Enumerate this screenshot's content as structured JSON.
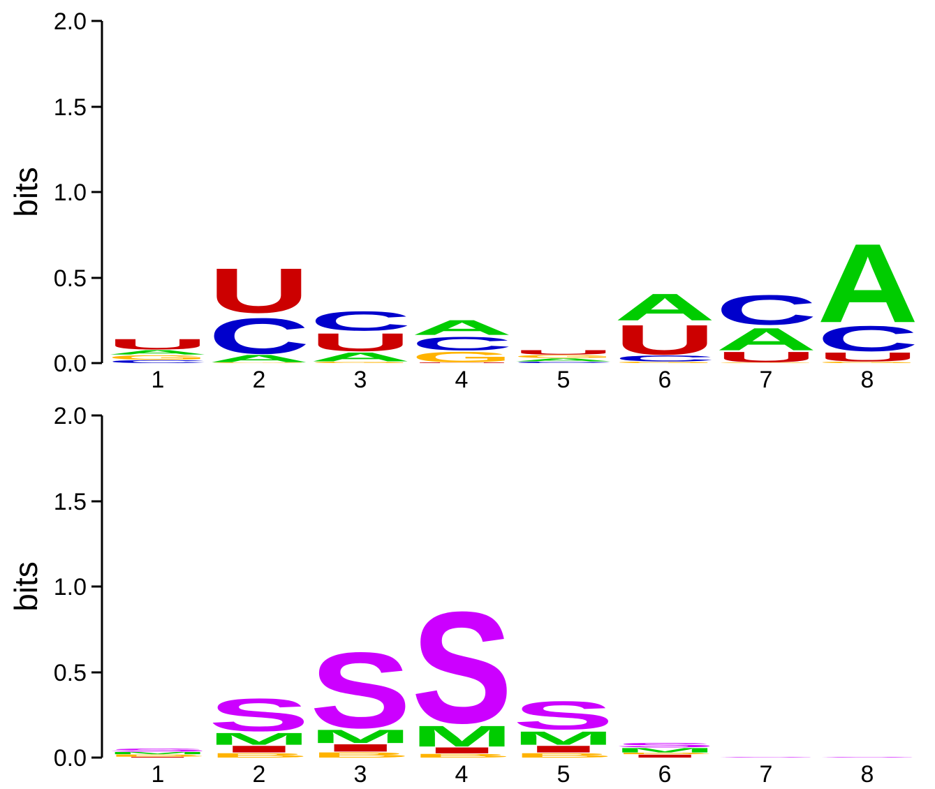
{
  "colors": {
    "A": "#00cc00",
    "C": "#0000cc",
    "G": "#ffb300",
    "U": "#cc0000",
    "S": "#cc00ff",
    "M": "#00cc00",
    "I": "#cc0000",
    "B": "#ffb300",
    "E": "#0000cc",
    "H": "#cc00ff"
  },
  "chart_data": [
    {
      "type": "sequence-logo",
      "title": "",
      "ylabel": "bits",
      "ylim": [
        0,
        2
      ],
      "yticks": [
        "0.0",
        "0.5",
        "1.0",
        "1.5",
        "2.0"
      ],
      "positions": [
        "1",
        "2",
        "3",
        "4",
        "5",
        "6",
        "7",
        "8"
      ],
      "stacks": [
        [
          {
            "letter": "C",
            "bits": 0.02
          },
          {
            "letter": "G",
            "bits": 0.03
          },
          {
            "letter": "A",
            "bits": 0.03
          },
          {
            "letter": "U",
            "bits": 0.07
          }
        ],
        [
          {
            "letter": "G",
            "bits": 0.005
          },
          {
            "letter": "A",
            "bits": 0.05
          },
          {
            "letter": "C",
            "bits": 0.24
          },
          {
            "letter": "U",
            "bits": 0.3
          }
        ],
        [
          {
            "letter": "G",
            "bits": 0.01
          },
          {
            "letter": "A",
            "bits": 0.06
          },
          {
            "letter": "U",
            "bits": 0.12
          },
          {
            "letter": "C",
            "bits": 0.13
          }
        ],
        [
          {
            "letter": "U",
            "bits": 0.005
          },
          {
            "letter": "G",
            "bits": 0.07
          },
          {
            "letter": "C",
            "bits": 0.09
          },
          {
            "letter": "A",
            "bits": 0.1
          }
        ],
        [
          {
            "letter": "C",
            "bits": 0.01
          },
          {
            "letter": "A",
            "bits": 0.02
          },
          {
            "letter": "G",
            "bits": 0.02
          },
          {
            "letter": "U",
            "bits": 0.03
          }
        ],
        [
          {
            "letter": "G",
            "bits": 0.01
          },
          {
            "letter": "C",
            "bits": 0.04
          },
          {
            "letter": "U",
            "bits": 0.2
          },
          {
            "letter": "A",
            "bits": 0.18
          }
        ],
        [
          {
            "letter": "G",
            "bits": 0.005
          },
          {
            "letter": "U",
            "bits": 0.07
          },
          {
            "letter": "A",
            "bits": 0.15
          },
          {
            "letter": "C",
            "bits": 0.2
          }
        ],
        [
          {
            "letter": "G",
            "bits": 0.01
          },
          {
            "letter": "U",
            "bits": 0.06
          },
          {
            "letter": "C",
            "bits": 0.17
          },
          {
            "letter": "A",
            "bits": 0.53
          }
        ]
      ]
    },
    {
      "type": "sequence-logo",
      "title": "",
      "ylabel": "bits",
      "ylim": [
        0,
        2
      ],
      "yticks": [
        "0.0",
        "0.5",
        "1.0",
        "1.5",
        "2.0"
      ],
      "positions": [
        "1",
        "2",
        "3",
        "4",
        "5",
        "6",
        "7",
        "8"
      ],
      "stacks": [
        [
          {
            "letter": "I",
            "bits": 0.005
          },
          {
            "letter": "B",
            "bits": 0.015
          },
          {
            "letter": "M",
            "bits": 0.015
          },
          {
            "letter": "S",
            "bits": 0.02
          }
        ],
        [
          {
            "letter": "B",
            "bits": 0.03
          },
          {
            "letter": "I",
            "bits": 0.045
          },
          {
            "letter": "M",
            "bits": 0.08
          },
          {
            "letter": "S",
            "bits": 0.22
          }
        ],
        [
          {
            "letter": "B",
            "bits": 0.035
          },
          {
            "letter": "I",
            "bits": 0.05
          },
          {
            "letter": "M",
            "bits": 0.09
          },
          {
            "letter": "S",
            "bits": 0.51
          }
        ],
        [
          {
            "letter": "B",
            "bits": 0.025
          },
          {
            "letter": "I",
            "bits": 0.04
          },
          {
            "letter": "M",
            "bits": 0.14
          },
          {
            "letter": "S",
            "bits": 0.75
          }
        ],
        [
          {
            "letter": "B",
            "bits": 0.03
          },
          {
            "letter": "I",
            "bits": 0.045
          },
          {
            "letter": "M",
            "bits": 0.09
          },
          {
            "letter": "S",
            "bits": 0.19
          }
        ],
        [
          {
            "letter": "I",
            "bits": 0.02
          },
          {
            "letter": "B",
            "bits": 0.01
          },
          {
            "letter": "M",
            "bits": 0.03
          },
          {
            "letter": "S",
            "bits": 0.03
          }
        ],
        [
          {
            "letter": "S",
            "bits": 0.004
          }
        ],
        [
          {
            "letter": "S",
            "bits": 0.004
          }
        ]
      ]
    }
  ]
}
